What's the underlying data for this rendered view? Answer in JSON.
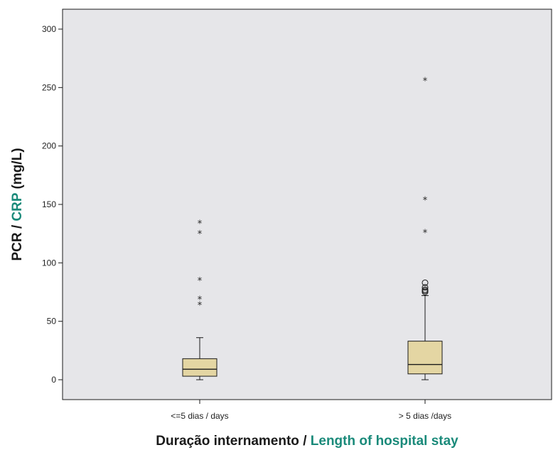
{
  "chart_data": {
    "type": "boxplot",
    "xlabel_parts": [
      {
        "text": "Duração internamento / ",
        "color": "#1a1a1a"
      },
      {
        "text": "Length of hospital stay",
        "color": "#1a8a7a"
      }
    ],
    "ylabel_parts": [
      {
        "text": "PCR / ",
        "color": "#1a1a1a"
      },
      {
        "text": "CRP",
        "color": "#1a8a7a"
      },
      {
        "text": " (mg/L)",
        "color": "#1a1a1a"
      }
    ],
    "ylim": [
      -15,
      317
    ],
    "yticks": [
      0,
      50,
      100,
      150,
      200,
      250,
      300
    ],
    "categories": [
      "<=5 dias / days",
      "> 5 dias /days"
    ],
    "boxes": [
      {
        "category": "<=5 dias / days",
        "whisker_low": 0,
        "q1": 3,
        "median": 9,
        "q3": 18,
        "whisker_high": 36,
        "outliers_circle": [],
        "outliers_extreme": [
          64,
          69,
          85,
          125,
          134
        ]
      },
      {
        "category": "> 5 dias /days",
        "whisker_low": 0,
        "q1": 5,
        "median": 13,
        "q3": 33,
        "whisker_high": 72,
        "outliers_circle": [
          75,
          76,
          77,
          79,
          83
        ],
        "outliers_extreme": [
          126,
          154,
          256
        ]
      }
    ],
    "colors": {
      "plot_background": "#e6e6e9",
      "box_fill": "#e4d6a3",
      "line": "#1a1a1a"
    },
    "grid": false,
    "legend": "none"
  }
}
